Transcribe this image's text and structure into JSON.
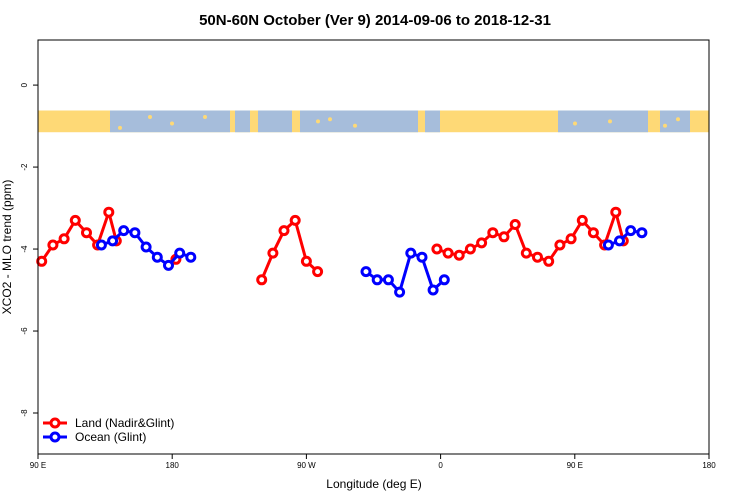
{
  "chart_data": {
    "type": "line",
    "title": "50N-60N October (Ver 9)   2014-09-06 to 2018-12-31",
    "xlabel": "Longitude (deg E)",
    "ylabel": "XCO2 - MLO trend (ppm)",
    "x_axis": {
      "unit": "degrees east, unwrapped from 90E through 180, 90W, 0, 90E to 180",
      "range": [
        90,
        450
      ],
      "ticks": [
        {
          "value": 90,
          "label": "90 E"
        },
        {
          "value": 180,
          "label": "180"
        },
        {
          "value": 270,
          "label": "90 W"
        },
        {
          "value": 360,
          "label": "0"
        },
        {
          "value": 450,
          "label": "90 E"
        },
        {
          "value": 540,
          "label": "180"
        }
      ]
    },
    "ylim": [
      -9,
      1.1
    ],
    "yticks": [
      {
        "value": 0,
        "label": "0"
      },
      {
        "value": -2,
        "label": "-2"
      },
      {
        "value": -4,
        "label": "-4"
      },
      {
        "value": -6,
        "label": "-6"
      },
      {
        "value": -8,
        "label": "-8"
      }
    ],
    "map_strip": {
      "y_top": -0.62,
      "y_bottom": -1.15,
      "ocean_color": "#a6bddb",
      "land_color": "#fed976"
    },
    "legend": {
      "position": "bottom-left"
    },
    "series": [
      {
        "name": "Land (Nadir&Glint)",
        "color": "#ff0000",
        "segments": [
          [
            [
              92.5,
              -4.3
            ],
            [
              100,
              -3.9
            ],
            [
              107.5,
              -3.75
            ],
            [
              115,
              -3.3
            ],
            [
              122.5,
              -3.6
            ],
            [
              130,
              -3.9
            ],
            [
              137.5,
              -3.1
            ],
            [
              142.5,
              -3.8
            ]
          ],
          [
            [
              182.5,
              -4.25
            ]
          ],
          [
            [
              240,
              -4.75
            ],
            [
              247.5,
              -4.1
            ],
            [
              255,
              -3.55
            ],
            [
              262.5,
              -3.3
            ],
            [
              270,
              -4.3
            ],
            [
              277.5,
              -4.55
            ]
          ],
          [
            [
              357.5,
              -4.0
            ],
            [
              365,
              -4.1
            ],
            [
              372.5,
              -4.15
            ],
            [
              380,
              -4.0
            ],
            [
              387.5,
              -3.85
            ],
            [
              395,
              -3.6
            ],
            [
              402.5,
              -3.7
            ],
            [
              410,
              -3.4
            ],
            [
              417.5,
              -4.1
            ],
            [
              425,
              -4.2
            ],
            [
              432.5,
              -4.3
            ],
            [
              440,
              -3.9
            ],
            [
              447.5,
              -3.75
            ],
            [
              455,
              -3.3
            ],
            [
              462.5,
              -3.6
            ],
            [
              470,
              -3.9
            ],
            [
              477.5,
              -3.1
            ],
            [
              482.5,
              -3.8
            ]
          ]
        ]
      },
      {
        "name": "Ocean (Glint)",
        "color": "#0000ff",
        "segments": [
          [
            [
              132.5,
              -3.9
            ],
            [
              140,
              -3.8
            ],
            [
              147.5,
              -3.55
            ],
            [
              155,
              -3.6
            ],
            [
              162.5,
              -3.95
            ],
            [
              170,
              -4.2
            ],
            [
              177.5,
              -4.4
            ],
            [
              185,
              -4.1
            ],
            [
              192.5,
              -4.2
            ]
          ],
          [
            [
              310,
              -4.55
            ],
            [
              317.5,
              -4.75
            ],
            [
              325,
              -4.75
            ],
            [
              332.5,
              -5.05
            ],
            [
              340,
              -4.1
            ],
            [
              347.5,
              -4.2
            ],
            [
              355,
              -5.0
            ],
            [
              362.5,
              -4.75
            ]
          ],
          [
            [
              472.5,
              -3.9
            ],
            [
              480,
              -3.8
            ],
            [
              487.5,
              -3.55
            ],
            [
              495,
              -3.6
            ]
          ]
        ]
      }
    ]
  }
}
